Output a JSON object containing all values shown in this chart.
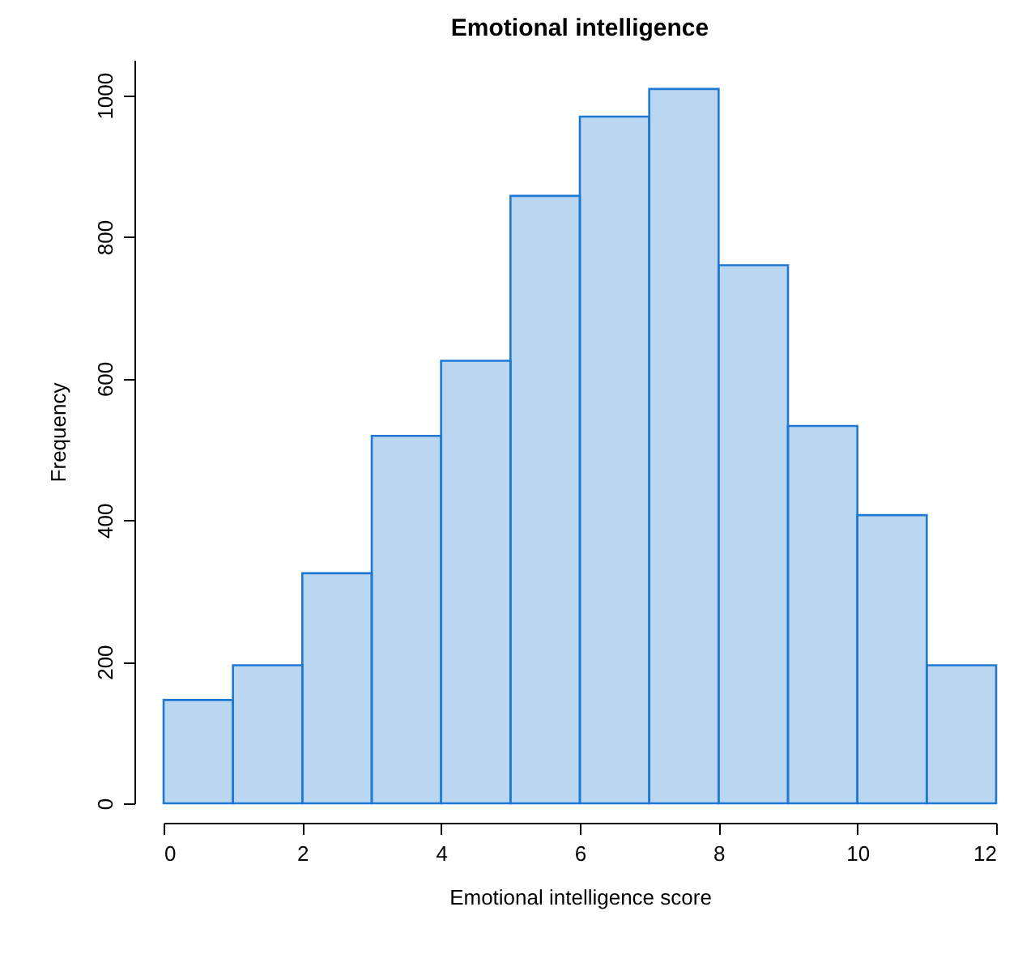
{
  "chart_data": {
    "type": "histogram",
    "title": "Emotional intelligence",
    "xlabel": "Emotional intelligence score",
    "ylabel": "Frequency",
    "bins": [
      0,
      1,
      2,
      3,
      4,
      5,
      6,
      7,
      8,
      9,
      10,
      11,
      12
    ],
    "values": [
      146,
      195,
      325,
      519,
      625,
      858,
      970,
      1009,
      760,
      533,
      407,
      195
    ],
    "color": "#1f78d1",
    "xlim": [
      0,
      12
    ],
    "xticks": [
      0,
      2,
      4,
      6,
      8,
      10,
      12
    ],
    "ylim": [
      0,
      1050
    ],
    "yticks": [
      0,
      200,
      400,
      600,
      800,
      1000
    ],
    "grid": false
  }
}
